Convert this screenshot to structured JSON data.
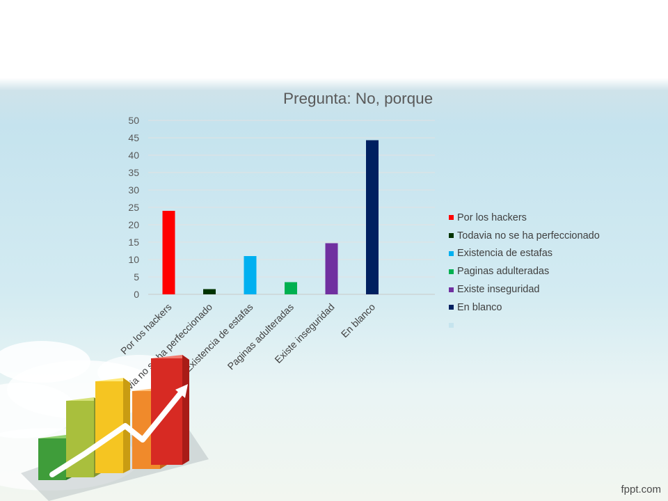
{
  "chart_data": {
    "type": "bar",
    "title": "Pregunta: No, porque",
    "categories": [
      "Por los hackers",
      "Todavia no se ha perfeccionado",
      "Existencia de estafas",
      "Paginas adulteradas",
      "Existe inseguridad",
      "En blanco"
    ],
    "values": [
      24,
      1.5,
      11,
      3.5,
      14.7,
      44.3
    ],
    "colors": [
      "#ff0000",
      "#003300",
      "#00b0f0",
      "#00b050",
      "#7030a0",
      "#002060"
    ],
    "ylim": [
      0,
      50
    ],
    "yticks": [
      0,
      5,
      10,
      15,
      20,
      25,
      30,
      35,
      40,
      45,
      50
    ],
    "grid": true,
    "legend_position": "right",
    "legend": [
      {
        "label": "Por los hackers",
        "color": "#ff0000"
      },
      {
        "label": "Todavia no se ha perfeccionado",
        "color": "#003300"
      },
      {
        "label": "Existencia de estafas",
        "color": "#00b0f0"
      },
      {
        "label": "Paginas adulteradas",
        "color": "#00b050"
      },
      {
        "label": "Existe inseguridad",
        "color": "#7030a0"
      },
      {
        "label": "En blanco",
        "color": "#002060"
      },
      {
        "label": "",
        "color": "#c6e4ee"
      }
    ]
  },
  "footer": {
    "brand": "fppt.com"
  }
}
